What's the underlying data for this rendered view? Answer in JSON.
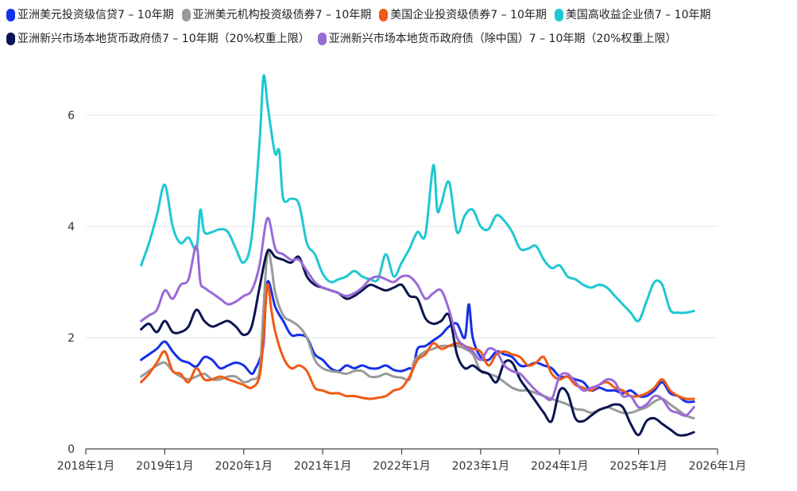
{
  "chart_data": {
    "type": "line",
    "title": "",
    "xlabel": "",
    "ylabel": "",
    "xlim": [
      2018.0,
      2026.0
    ],
    "ylim": [
      0,
      7
    ],
    "x_ticks": [
      {
        "value": 2018,
        "label": "2018年1月"
      },
      {
        "value": 2019,
        "label": "2019年1月"
      },
      {
        "value": 2020,
        "label": "2020年1月"
      },
      {
        "value": 2021,
        "label": "2021年1月"
      },
      {
        "value": 2022,
        "label": "2022年1月"
      },
      {
        "value": 2023,
        "label": "2023年1月"
      },
      {
        "value": 2024,
        "label": "2024年1月"
      },
      {
        "value": 2025,
        "label": "2025年1月"
      },
      {
        "value": 2026,
        "label": "2026年1月"
      }
    ],
    "y_ticks": [
      {
        "value": 0,
        "label": "0"
      },
      {
        "value": 2,
        "label": "2"
      },
      {
        "value": 4,
        "label": "4"
      },
      {
        "value": 6,
        "label": "6"
      }
    ],
    "grid": true,
    "legend_position": "top",
    "series": [
      {
        "name": "亚洲美元投资级信贷7 – 10年期",
        "color": "#1430E8",
        "x": [
          2018.7,
          2018.8,
          2018.9,
          2019.0,
          2019.1,
          2019.2,
          2019.3,
          2019.4,
          2019.5,
          2019.6,
          2019.7,
          2019.8,
          2019.9,
          2020.0,
          2020.1,
          2020.15,
          2020.2,
          2020.25,
          2020.3,
          2020.4,
          2020.5,
          2020.6,
          2020.7,
          2020.8,
          2020.9,
          2021.0,
          2021.1,
          2021.2,
          2021.3,
          2021.4,
          2021.5,
          2021.6,
          2021.7,
          2021.8,
          2021.9,
          2022.0,
          2022.1,
          2022.15,
          2022.2,
          2022.3,
          2022.4,
          2022.5,
          2022.6,
          2022.7,
          2022.8,
          2022.85,
          2022.9,
          2023.0,
          2023.1,
          2023.2,
          2023.3,
          2023.4,
          2023.5,
          2023.6,
          2023.7,
          2023.8,
          2023.9,
          2024.0,
          2024.1,
          2024.2,
          2024.3,
          2024.4,
          2024.5,
          2024.6,
          2024.7,
          2024.8,
          2024.9,
          2025.0,
          2025.1,
          2025.2,
          2025.3,
          2025.4,
          2025.5,
          2025.6,
          2025.7
        ],
        "y": [
          1.6,
          1.7,
          1.8,
          1.93,
          1.75,
          1.6,
          1.55,
          1.48,
          1.65,
          1.6,
          1.45,
          1.5,
          1.55,
          1.5,
          1.35,
          1.45,
          1.6,
          1.9,
          3.0,
          2.55,
          2.3,
          2.05,
          2.05,
          2.0,
          1.7,
          1.6,
          1.45,
          1.4,
          1.5,
          1.45,
          1.5,
          1.45,
          1.45,
          1.5,
          1.42,
          1.4,
          1.45,
          1.45,
          1.8,
          1.85,
          1.95,
          2.05,
          2.2,
          2.25,
          2.0,
          2.6,
          2.0,
          1.65,
          1.6,
          1.75,
          1.7,
          1.65,
          1.5,
          1.5,
          1.55,
          1.5,
          1.45,
          1.3,
          1.3,
          1.25,
          1.2,
          1.05,
          1.1,
          1.05,
          1.05,
          1.0,
          1.05,
          0.95,
          0.95,
          1.05,
          1.2,
          1.0,
          0.95,
          0.85,
          0.85
        ]
      },
      {
        "name": "亚洲美元机构投资级债券7 – 10年期",
        "color": "#9A9A9A",
        "x": [
          2018.7,
          2018.8,
          2018.9,
          2019.0,
          2019.1,
          2019.2,
          2019.3,
          2019.4,
          2019.5,
          2019.6,
          2019.7,
          2019.8,
          2019.9,
          2020.0,
          2020.1,
          2020.2,
          2020.25,
          2020.3,
          2020.35,
          2020.4,
          2020.5,
          2020.6,
          2020.7,
          2020.8,
          2020.9,
          2021.0,
          2021.1,
          2021.2,
          2021.3,
          2021.4,
          2021.5,
          2021.6,
          2021.7,
          2021.8,
          2021.9,
          2022.0,
          2022.1,
          2022.15,
          2022.2,
          2022.3,
          2022.4,
          2022.5,
          2022.6,
          2022.7,
          2022.8,
          2022.9,
          2023.0,
          2023.1,
          2023.2,
          2023.3,
          2023.4,
          2023.5,
          2023.6,
          2023.7,
          2023.8,
          2023.9,
          2024.0,
          2024.1,
          2024.2,
          2024.3,
          2024.4,
          2024.5,
          2024.6,
          2024.7,
          2024.8,
          2024.9,
          2025.0,
          2025.1,
          2025.2,
          2025.3,
          2025.4,
          2025.5,
          2025.6,
          2025.7
        ],
        "y": [
          1.3,
          1.4,
          1.5,
          1.55,
          1.4,
          1.3,
          1.25,
          1.3,
          1.35,
          1.25,
          1.25,
          1.3,
          1.3,
          1.2,
          1.25,
          1.4,
          2.5,
          3.55,
          3.3,
          2.8,
          2.4,
          2.3,
          2.2,
          2.0,
          1.6,
          1.45,
          1.4,
          1.38,
          1.35,
          1.4,
          1.4,
          1.3,
          1.3,
          1.35,
          1.3,
          1.28,
          1.25,
          1.55,
          1.65,
          1.75,
          1.8,
          1.85,
          1.85,
          1.85,
          1.8,
          1.7,
          1.4,
          1.35,
          1.3,
          1.2,
          1.1,
          1.05,
          1.05,
          1.0,
          0.95,
          0.9,
          0.85,
          0.8,
          0.72,
          0.7,
          0.65,
          0.7,
          0.75,
          0.7,
          0.65,
          0.65,
          0.7,
          0.75,
          0.85,
          0.9,
          0.8,
          0.7,
          0.6,
          0.55
        ]
      },
      {
        "name": "美国企业投资级债券7 – 10年期",
        "color": "#F05A14",
        "x": [
          2018.7,
          2018.8,
          2018.9,
          2019.0,
          2019.1,
          2019.2,
          2019.3,
          2019.4,
          2019.5,
          2019.6,
          2019.7,
          2019.8,
          2019.9,
          2020.0,
          2020.1,
          2020.2,
          2020.25,
          2020.3,
          2020.35,
          2020.4,
          2020.5,
          2020.6,
          2020.7,
          2020.8,
          2020.9,
          2021.0,
          2021.1,
          2021.2,
          2021.3,
          2021.4,
          2021.5,
          2021.6,
          2021.7,
          2021.8,
          2021.9,
          2022.0,
          2022.1,
          2022.2,
          2022.3,
          2022.4,
          2022.5,
          2022.6,
          2022.7,
          2022.8,
          2022.9,
          2023.0,
          2023.1,
          2023.2,
          2023.3,
          2023.4,
          2023.5,
          2023.6,
          2023.7,
          2023.8,
          2023.9,
          2024.0,
          2024.1,
          2024.2,
          2024.3,
          2024.4,
          2024.5,
          2024.6,
          2024.7,
          2024.8,
          2024.9,
          2025.0,
          2025.1,
          2025.2,
          2025.3,
          2025.4,
          2025.5,
          2025.6,
          2025.7
        ],
        "y": [
          1.2,
          1.35,
          1.55,
          1.75,
          1.4,
          1.35,
          1.2,
          1.45,
          1.25,
          1.25,
          1.3,
          1.25,
          1.2,
          1.15,
          1.1,
          1.3,
          2.0,
          2.95,
          2.5,
          2.1,
          1.65,
          1.45,
          1.5,
          1.4,
          1.1,
          1.05,
          1.0,
          1.0,
          0.95,
          0.95,
          0.92,
          0.9,
          0.92,
          0.95,
          1.05,
          1.1,
          1.3,
          1.6,
          1.7,
          1.9,
          1.8,
          1.85,
          1.9,
          1.85,
          1.8,
          1.75,
          1.5,
          1.7,
          1.75,
          1.7,
          1.65,
          1.5,
          1.55,
          1.65,
          1.35,
          1.25,
          1.3,
          1.15,
          1.1,
          1.05,
          1.15,
          1.2,
          1.1,
          1.05,
          0.95,
          0.95,
          1.0,
          1.1,
          1.25,
          1.05,
          0.95,
          0.9,
          0.9
        ]
      },
      {
        "name": "美国高收益企业债7 – 10年期",
        "color": "#1EC8D2",
        "x": [
          2018.7,
          2018.8,
          2018.9,
          2019.0,
          2019.1,
          2019.2,
          2019.3,
          2019.4,
          2019.45,
          2019.5,
          2019.6,
          2019.7,
          2019.8,
          2019.9,
          2020.0,
          2020.1,
          2020.2,
          2020.25,
          2020.3,
          2020.35,
          2020.4,
          2020.45,
          2020.5,
          2020.6,
          2020.7,
          2020.8,
          2020.9,
          2021.0,
          2021.1,
          2021.2,
          2021.3,
          2021.4,
          2021.5,
          2021.6,
          2021.7,
          2021.8,
          2021.9,
          2022.0,
          2022.1,
          2022.2,
          2022.3,
          2022.4,
          2022.45,
          2022.5,
          2022.6,
          2022.7,
          2022.8,
          2022.9,
          2023.0,
          2023.1,
          2023.2,
          2023.3,
          2023.4,
          2023.5,
          2023.6,
          2023.7,
          2023.8,
          2023.9,
          2024.0,
          2024.1,
          2024.2,
          2024.3,
          2024.4,
          2024.5,
          2024.6,
          2024.7,
          2024.8,
          2024.9,
          2025.0,
          2025.1,
          2025.2,
          2025.3,
          2025.4,
          2025.5,
          2025.6,
          2025.7
        ],
        "y": [
          3.3,
          3.7,
          4.2,
          4.75,
          4.0,
          3.7,
          3.8,
          3.6,
          4.3,
          3.9,
          3.9,
          3.95,
          3.9,
          3.6,
          3.35,
          3.8,
          5.5,
          6.7,
          6.2,
          5.7,
          5.3,
          5.35,
          4.5,
          4.5,
          4.4,
          3.7,
          3.5,
          3.15,
          3.0,
          3.05,
          3.1,
          3.2,
          3.1,
          3.05,
          3.05,
          3.5,
          3.1,
          3.35,
          3.6,
          3.9,
          3.85,
          5.1,
          4.3,
          4.4,
          4.8,
          3.9,
          4.2,
          4.3,
          4.0,
          3.95,
          4.2,
          4.1,
          3.9,
          3.6,
          3.6,
          3.65,
          3.4,
          3.25,
          3.3,
          3.1,
          3.05,
          2.95,
          2.9,
          2.95,
          2.9,
          2.75,
          2.6,
          2.45,
          2.3,
          2.65,
          3.0,
          2.95,
          2.5,
          2.45,
          2.45,
          2.48
        ]
      },
      {
        "name": "亚洲新兴市场本地货币政府债7 – 10年期（20%权重上限）",
        "color": "#0A1450",
        "x": [
          2018.7,
          2018.8,
          2018.9,
          2019.0,
          2019.1,
          2019.2,
          2019.3,
          2019.4,
          2019.5,
          2019.6,
          2019.7,
          2019.8,
          2019.9,
          2020.0,
          2020.1,
          2020.2,
          2020.3,
          2020.4,
          2020.5,
          2020.6,
          2020.7,
          2020.8,
          2020.9,
          2021.0,
          2021.1,
          2021.2,
          2021.3,
          2021.4,
          2021.5,
          2021.6,
          2021.7,
          2021.8,
          2021.9,
          2022.0,
          2022.1,
          2022.2,
          2022.3,
          2022.4,
          2022.5,
          2022.6,
          2022.7,
          2022.8,
          2022.9,
          2023.0,
          2023.1,
          2023.2,
          2023.3,
          2023.4,
          2023.5,
          2023.6,
          2023.7,
          2023.8,
          2023.9,
          2024.0,
          2024.1,
          2024.2,
          2024.3,
          2024.4,
          2024.5,
          2024.6,
          2024.7,
          2024.8,
          2024.9,
          2025.0,
          2025.1,
          2025.2,
          2025.3,
          2025.4,
          2025.5,
          2025.6,
          2025.7
        ],
        "y": [
          2.15,
          2.25,
          2.1,
          2.3,
          2.1,
          2.1,
          2.2,
          2.5,
          2.3,
          2.2,
          2.25,
          2.3,
          2.2,
          2.05,
          2.2,
          2.9,
          3.55,
          3.45,
          3.4,
          3.35,
          3.45,
          3.1,
          2.95,
          2.9,
          2.85,
          2.8,
          2.7,
          2.75,
          2.85,
          2.95,
          2.9,
          2.85,
          2.9,
          2.95,
          2.75,
          2.7,
          2.35,
          2.25,
          2.3,
          2.4,
          1.7,
          1.45,
          1.5,
          1.4,
          1.35,
          1.2,
          1.55,
          1.55,
          1.25,
          1.05,
          0.85,
          0.65,
          0.5,
          1.05,
          1.0,
          0.55,
          0.5,
          0.6,
          0.7,
          0.75,
          0.8,
          0.75,
          0.45,
          0.25,
          0.5,
          0.55,
          0.45,
          0.35,
          0.25,
          0.25,
          0.3
        ]
      },
      {
        "name": "亚洲新兴市场本地货币政府债（除中国）7 – 10年期（20%权重上限）",
        "color": "#9A6AD6",
        "x": [
          2018.7,
          2018.8,
          2018.9,
          2019.0,
          2019.1,
          2019.2,
          2019.3,
          2019.4,
          2019.45,
          2019.5,
          2019.6,
          2019.7,
          2019.8,
          2019.9,
          2020.0,
          2020.1,
          2020.2,
          2020.3,
          2020.4,
          2020.5,
          2020.6,
          2020.7,
          2020.8,
          2020.9,
          2021.0,
          2021.1,
          2021.2,
          2021.3,
          2021.4,
          2021.5,
          2021.6,
          2021.7,
          2021.8,
          2021.9,
          2022.0,
          2022.1,
          2022.2,
          2022.3,
          2022.4,
          2022.5,
          2022.6,
          2022.7,
          2022.8,
          2022.9,
          2023.0,
          2023.1,
          2023.2,
          2023.3,
          2023.4,
          2023.5,
          2023.6,
          2023.7,
          2023.8,
          2023.9,
          2024.0,
          2024.1,
          2024.2,
          2024.3,
          2024.4,
          2024.5,
          2024.6,
          2024.7,
          2024.8,
          2024.9,
          2025.0,
          2025.1,
          2025.2,
          2025.3,
          2025.4,
          2025.5,
          2025.6,
          2025.7
        ],
        "y": [
          2.3,
          2.4,
          2.5,
          2.85,
          2.7,
          2.95,
          3.05,
          3.65,
          3.0,
          2.9,
          2.8,
          2.7,
          2.6,
          2.65,
          2.75,
          2.85,
          3.3,
          4.15,
          3.6,
          3.5,
          3.4,
          3.4,
          3.2,
          3.0,
          2.9,
          2.85,
          2.8,
          2.75,
          2.8,
          2.9,
          3.05,
          3.1,
          3.05,
          3.0,
          3.1,
          3.1,
          2.95,
          2.7,
          2.8,
          2.85,
          2.5,
          2.0,
          1.85,
          1.75,
          1.6,
          1.8,
          1.75,
          1.5,
          1.4,
          1.35,
          1.2,
          1.05,
          0.95,
          0.9,
          1.3,
          1.35,
          1.2,
          1.05,
          1.1,
          1.15,
          1.25,
          1.2,
          0.95,
          0.95,
          0.75,
          0.8,
          0.95,
          0.9,
          0.7,
          0.65,
          0.6,
          0.75
        ]
      }
    ]
  }
}
